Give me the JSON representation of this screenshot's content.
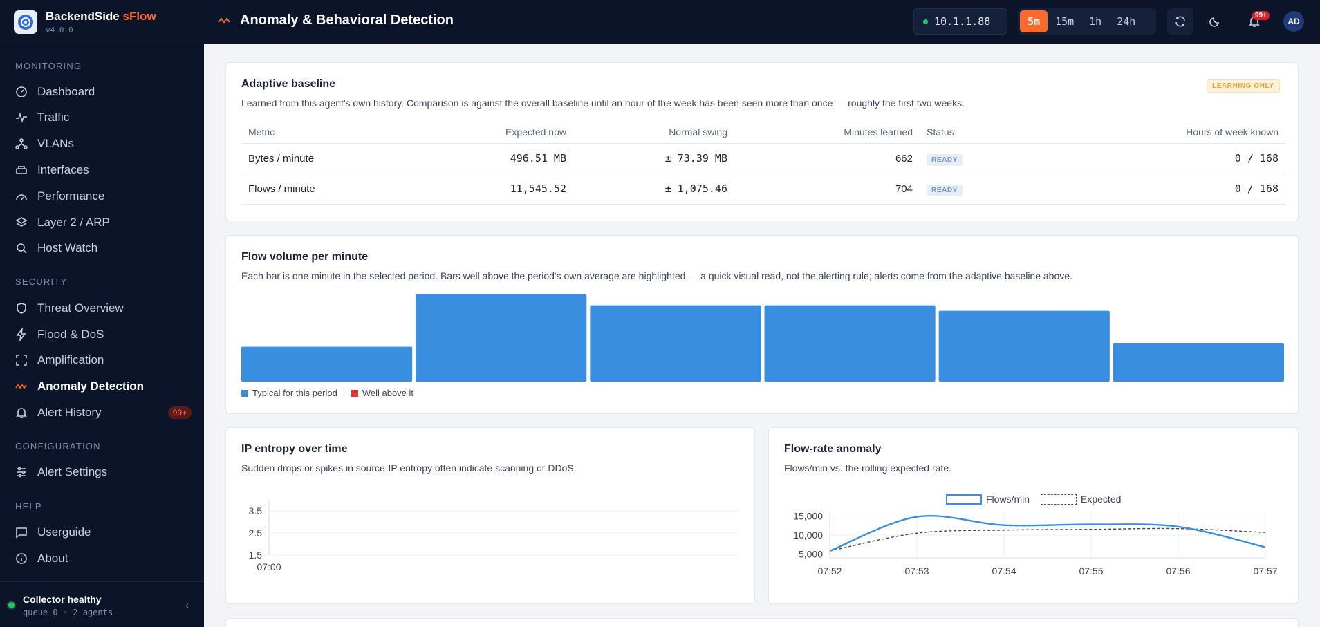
{
  "brand": {
    "name": "BackendSide",
    "accent": "sFlow",
    "version": "v4.0.0"
  },
  "sidebar": {
    "sections": [
      {
        "label": "MONITORING",
        "items": [
          {
            "label": "Dashboard",
            "icon": "gauge-icon"
          },
          {
            "label": "Traffic",
            "icon": "pulse-icon"
          },
          {
            "label": "VLANs",
            "icon": "network-icon"
          },
          {
            "label": "Interfaces",
            "icon": "ethernet-icon"
          },
          {
            "label": "Performance",
            "icon": "speedometer-icon"
          },
          {
            "label": "Layer 2 / ARP",
            "icon": "layers-icon"
          },
          {
            "label": "Host Watch",
            "icon": "search-icon"
          }
        ]
      },
      {
        "label": "SECURITY",
        "items": [
          {
            "label": "Threat Overview",
            "icon": "shield-icon"
          },
          {
            "label": "Flood & DoS",
            "icon": "bolt-icon"
          },
          {
            "label": "Amplification",
            "icon": "expand-icon"
          },
          {
            "label": "Anomaly Detection",
            "icon": "wave-icon",
            "active": true
          },
          {
            "label": "Alert History",
            "icon": "bell-icon",
            "badge": "99+"
          }
        ]
      },
      {
        "label": "CONFIGURATION",
        "items": [
          {
            "label": "Alert Settings",
            "icon": "sliders-icon"
          }
        ]
      },
      {
        "label": "HELP",
        "items": [
          {
            "label": "Userguide",
            "icon": "message-icon"
          },
          {
            "label": "About",
            "icon": "info-icon"
          }
        ]
      }
    ],
    "footer": {
      "status": "Collector healthy",
      "detail": "queue 0 · 2 agents",
      "collapse_glyph": "‹"
    }
  },
  "header": {
    "title": "Anomaly & Behavioral Detection",
    "agent": "10.1.1.88",
    "ranges": [
      "5m",
      "15m",
      "1h",
      "24h"
    ],
    "active_range": "5m",
    "notifications": "99+",
    "avatar": "AD"
  },
  "baseline": {
    "title": "Adaptive baseline",
    "badge": "LEARNING ONLY",
    "subtitle": "Learned from this agent's own history. Comparison is against the overall baseline until an hour of the week has been seen more than once — roughly the first two weeks.",
    "columns": [
      "Metric",
      "Expected now",
      "Normal swing",
      "Minutes learned",
      "Status",
      "Hours of week known"
    ],
    "rows": [
      {
        "metric": "Bytes / minute",
        "expected": "496.51 MB",
        "swing": "± 73.39 MB",
        "minutes": "662",
        "status": "READY",
        "hours": "0 / 168"
      },
      {
        "metric": "Flows / minute",
        "expected": "11,545.52",
        "swing": "± 1,075.46",
        "minutes": "704",
        "status": "READY",
        "hours": "0 / 168"
      }
    ]
  },
  "flow_volume": {
    "title": "Flow volume per minute",
    "subtitle": "Each bar is one minute in the selected period. Bars well above the period's own average are highlighted — a quick visual read, not the alerting rule; alerts come from the adaptive baseline above.",
    "legend": {
      "typical": "Typical for this period",
      "above": "Well above it"
    },
    "colors": {
      "typical": "#3a8ee0",
      "above": "#d63a2f"
    },
    "chart_data": {
      "type": "bar",
      "values": [
        6300,
        15800,
        13800,
        13800,
        12800,
        7000
      ],
      "flags": [
        false,
        false,
        false,
        false,
        false,
        false
      ],
      "ylim": [
        0,
        16000
      ]
    }
  },
  "entropy": {
    "title": "IP entropy over time",
    "subtitle": "Sudden drops or spikes in source-IP entropy often indicate scanning or DDoS.",
    "chart_data": {
      "type": "line",
      "yticks": [
        "3.5",
        "2.5",
        "1.5"
      ],
      "ylim": [
        1.5,
        4.0
      ],
      "xticks": [
        "07:00"
      ],
      "series": []
    }
  },
  "flow_rate": {
    "title": "Flow-rate anomaly",
    "subtitle": "Flows/min vs. the rolling expected rate.",
    "legend": [
      "Flows/min",
      "Expected"
    ],
    "chart_data": {
      "type": "line",
      "x": [
        "07:52",
        "07:53",
        "07:54",
        "07:55",
        "07:56",
        "07:57"
      ],
      "yticks": [
        "15,000",
        "10,000",
        "5,000"
      ],
      "ylim": [
        4000,
        16000
      ],
      "series": [
        {
          "name": "Flows/min",
          "values": [
            5800,
            14800,
            12600,
            12800,
            12200,
            6800
          ]
        },
        {
          "name": "Expected",
          "values": [
            5800,
            10500,
            11300,
            11500,
            11700,
            10700
          ]
        }
      ]
    }
  }
}
